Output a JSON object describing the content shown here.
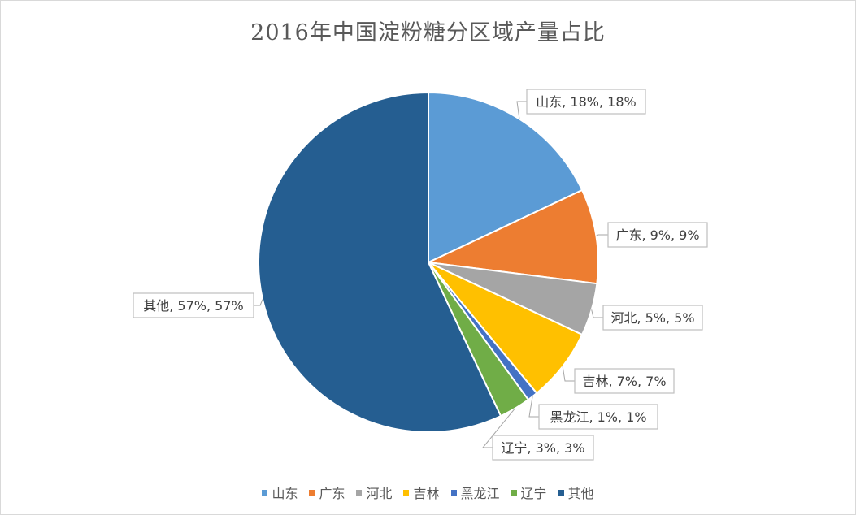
{
  "chart_data": {
    "type": "pie",
    "title": "2016年中国淀粉糖分区域产量占比",
    "categories": [
      "山东",
      "广东",
      "河北",
      "吉林",
      "黑龙江",
      "辽宁",
      "其他"
    ],
    "values": [
      18,
      9,
      5,
      7,
      1,
      3,
      57
    ],
    "unit": "%",
    "data_labels": [
      "山东, 18%, 18%",
      "广东, 9%, 9%",
      "河北, 5%, 5%",
      "吉林, 7%, 7%",
      "黑龙江, 1%, 1%",
      "辽宁, 3%, 3%",
      "其他, 57%, 57%"
    ],
    "colors": [
      "#5b9bd5",
      "#ed7d31",
      "#a5a5a5",
      "#ffc000",
      "#4472c4",
      "#70ad47",
      "#255e91"
    ],
    "legend_position": "bottom",
    "start_angle_deg": 0,
    "direction": "clockwise"
  }
}
